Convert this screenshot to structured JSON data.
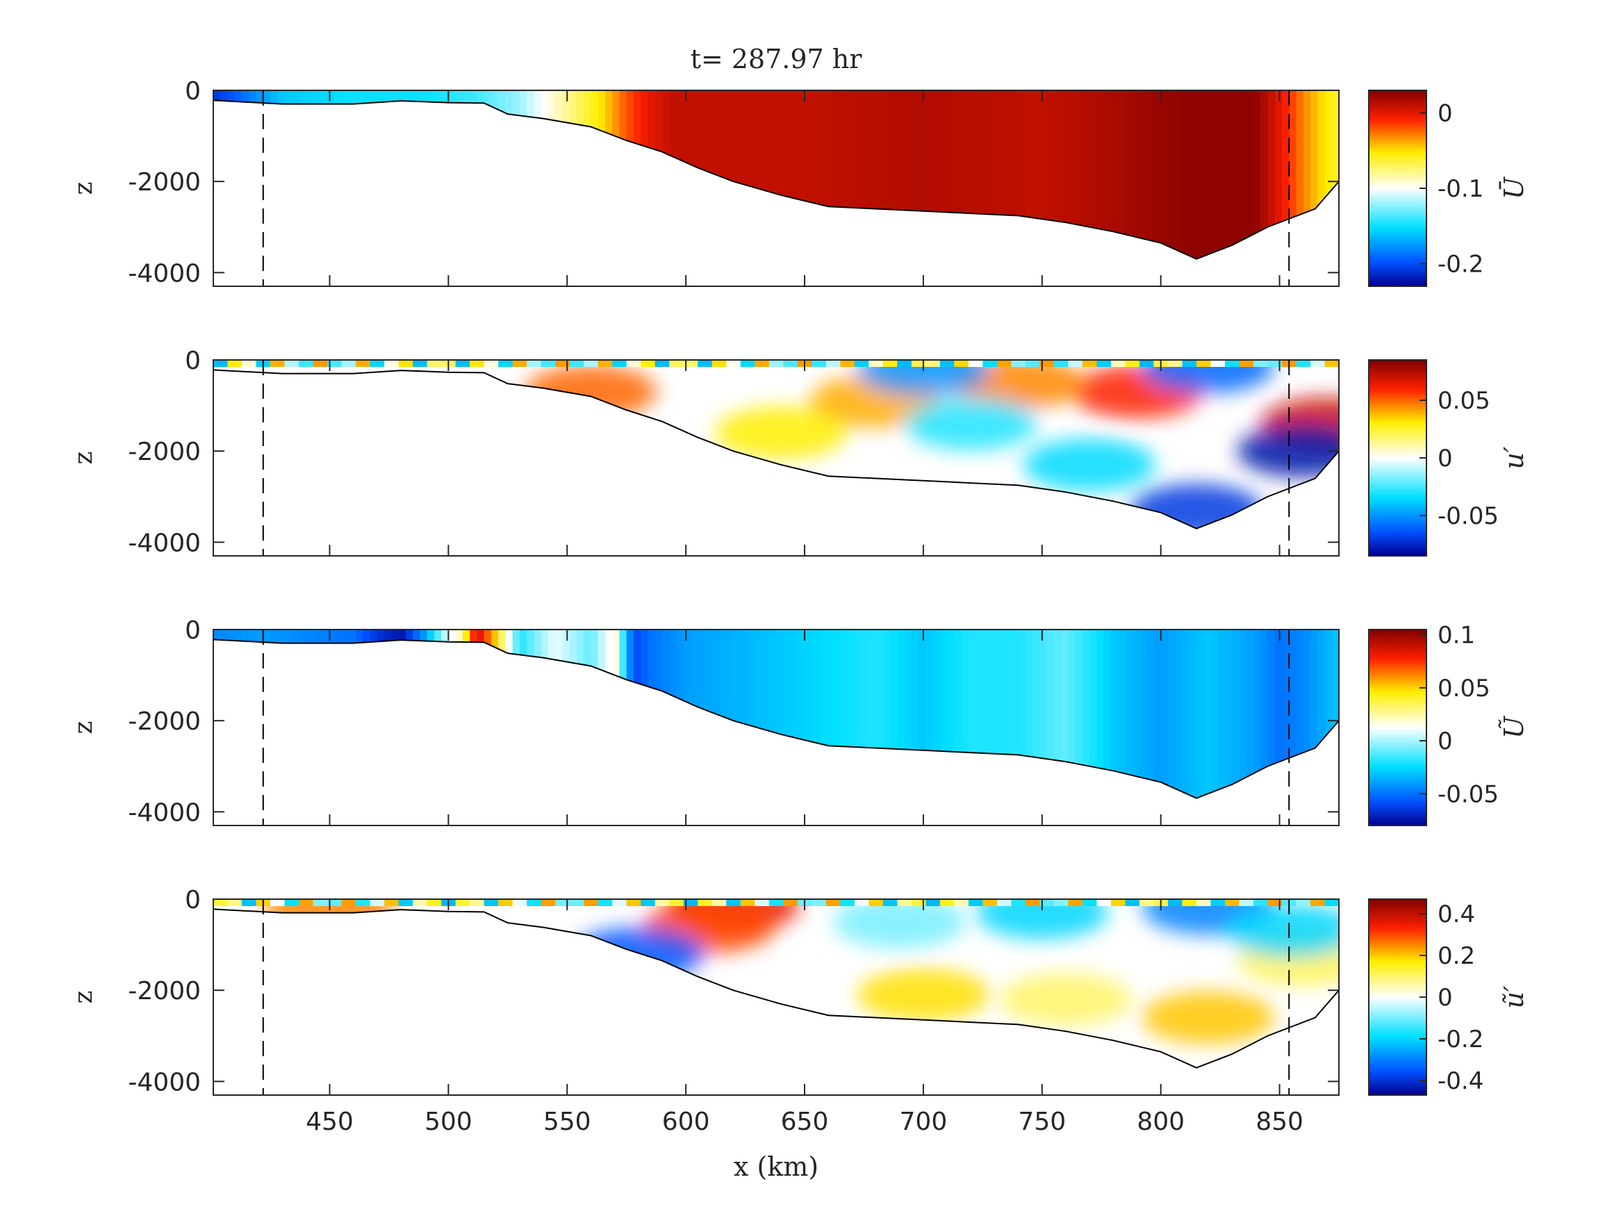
{
  "chart_data": {
    "type": "heatmap",
    "title": "t= 287.97 hr",
    "xlabel": "x (km)",
    "xlim": [
      401,
      875
    ],
    "x_ticks": [
      "450",
      "500",
      "550",
      "600",
      "650",
      "700",
      "750",
      "800",
      "850"
    ],
    "dashed_lines_x": [
      422,
      854
    ],
    "bathymetry": {
      "x": [
        401,
        430,
        460,
        480,
        500,
        515,
        525,
        540,
        560,
        575,
        590,
        605,
        620,
        640,
        660,
        680,
        700,
        720,
        740,
        760,
        780,
        800,
        815,
        830,
        845,
        855,
        865,
        875
      ],
      "depth": [
        -220,
        -300,
        -300,
        -230,
        -270,
        -280,
        -520,
        -620,
        -800,
        -1100,
        -1350,
        -1700,
        -2000,
        -2300,
        -2550,
        -2600,
        -2650,
        -2700,
        -2750,
        -2900,
        -3100,
        -3350,
        -3700,
        -3400,
        -3000,
        -2800,
        -2600,
        -2000
      ]
    },
    "panels": [
      {
        "name": "U-bar",
        "ylabel": "z",
        "ylim": [
          -4300,
          0
        ],
        "y_ticks": [
          "0",
          "-2000",
          "-4000"
        ],
        "colorbar": {
          "symbol": "Ū",
          "range": [
            -0.23,
            0.03
          ],
          "ticks": [
            "0",
            "-0.1",
            "-0.2"
          ]
        },
        "profile_x": [
          401,
          430,
          460,
          490,
          510,
          530,
          550,
          565,
          575,
          585,
          595,
          610,
          650,
          700,
          750,
          790,
          810,
          840,
          850,
          860,
          868,
          875
        ],
        "profile_values": [
          -0.21,
          -0.16,
          -0.15,
          -0.15,
          -0.14,
          -0.12,
          -0.08,
          -0.05,
          -0.02,
          0.0,
          0.01,
          0.01,
          0.01,
          0.015,
          0.01,
          0.02,
          0.025,
          0.025,
          0.0,
          -0.03,
          -0.05,
          -0.06
        ]
      },
      {
        "name": "u-prime",
        "ylabel": "z",
        "ylim": [
          -4300,
          0
        ],
        "y_ticks": [
          "0",
          "-2000",
          "-4000"
        ],
        "colorbar": {
          "symbol": "u′",
          "range": [
            -0.085,
            0.085
          ],
          "ticks": [
            "0.05",
            "0",
            "-0.05"
          ]
        },
        "blobs": [
          {
            "x": 790,
            "z": -700,
            "value": 0.06
          },
          {
            "x": 740,
            "z": -500,
            "value": 0.045
          },
          {
            "x": 680,
            "z": -900,
            "value": 0.04
          },
          {
            "x": 870,
            "z": -1400,
            "value": 0.07
          },
          {
            "x": 560,
            "z": -700,
            "value": 0.05
          },
          {
            "x": 770,
            "z": -2300,
            "value": -0.035
          },
          {
            "x": 815,
            "z": -3300,
            "value": -0.07
          },
          {
            "x": 860,
            "z": -2000,
            "value": -0.08
          },
          {
            "x": 700,
            "z": -200,
            "value": -0.05
          },
          {
            "x": 820,
            "z": -150,
            "value": -0.06
          },
          {
            "x": 720,
            "z": -1400,
            "value": -0.03
          },
          {
            "x": 640,
            "z": -1600,
            "value": 0.03
          }
        ]
      },
      {
        "name": "U-tilde",
        "ylabel": "z",
        "ylim": [
          -4300,
          0
        ],
        "y_ticks": [
          "0",
          "-2000",
          "-4000"
        ],
        "colorbar": {
          "symbol": "Ũ",
          "range": [
            -0.08,
            0.105
          ],
          "ticks": [
            "0.1",
            "0.05",
            "0",
            "-0.05"
          ]
        },
        "profile_x": [
          401,
          420,
          440,
          460,
          470,
          480,
          490,
          500,
          505,
          512,
          520,
          530,
          545,
          560,
          570,
          578,
          585,
          600,
          620,
          640,
          660,
          680,
          700,
          720,
          740,
          760,
          780,
          800,
          820,
          840,
          850,
          860,
          875
        ],
        "profile_values": [
          -0.045,
          -0.04,
          -0.045,
          -0.05,
          -0.065,
          -0.075,
          -0.04,
          0.01,
          0.02,
          0.09,
          0.05,
          -0.02,
          0.01,
          -0.01,
          0.02,
          -0.06,
          -0.05,
          -0.04,
          -0.035,
          -0.03,
          -0.025,
          -0.02,
          -0.03,
          -0.02,
          -0.02,
          -0.01,
          -0.03,
          -0.04,
          -0.03,
          -0.04,
          -0.05,
          -0.045,
          -0.03
        ]
      },
      {
        "name": "u-tilde-prime",
        "ylabel": "z",
        "ylim": [
          -4300,
          0
        ],
        "y_ticks": [
          "0",
          "-2000",
          "-4000"
        ],
        "colorbar": {
          "symbol": "ũ′",
          "range": [
            -0.47,
            0.47
          ],
          "ticks": [
            "0.4",
            "0.2",
            "0",
            "-0.2",
            "-0.4"
          ]
        },
        "blobs": [
          {
            "x": 620,
            "z": -150,
            "value": 0.35
          },
          {
            "x": 610,
            "z": -600,
            "value": 0.3
          },
          {
            "x": 700,
            "z": -2100,
            "value": 0.18
          },
          {
            "x": 760,
            "z": -2200,
            "value": 0.1
          },
          {
            "x": 820,
            "z": -2600,
            "value": 0.2
          },
          {
            "x": 860,
            "z": -1300,
            "value": 0.12
          },
          {
            "x": 750,
            "z": -300,
            "value": -0.2
          },
          {
            "x": 820,
            "z": -200,
            "value": -0.3
          },
          {
            "x": 855,
            "z": -700,
            "value": -0.2
          },
          {
            "x": 580,
            "z": -1200,
            "value": -0.35
          },
          {
            "x": 450,
            "z": -250,
            "value": 0.25
          },
          {
            "x": 690,
            "z": -500,
            "value": -0.1
          }
        ]
      }
    ]
  }
}
